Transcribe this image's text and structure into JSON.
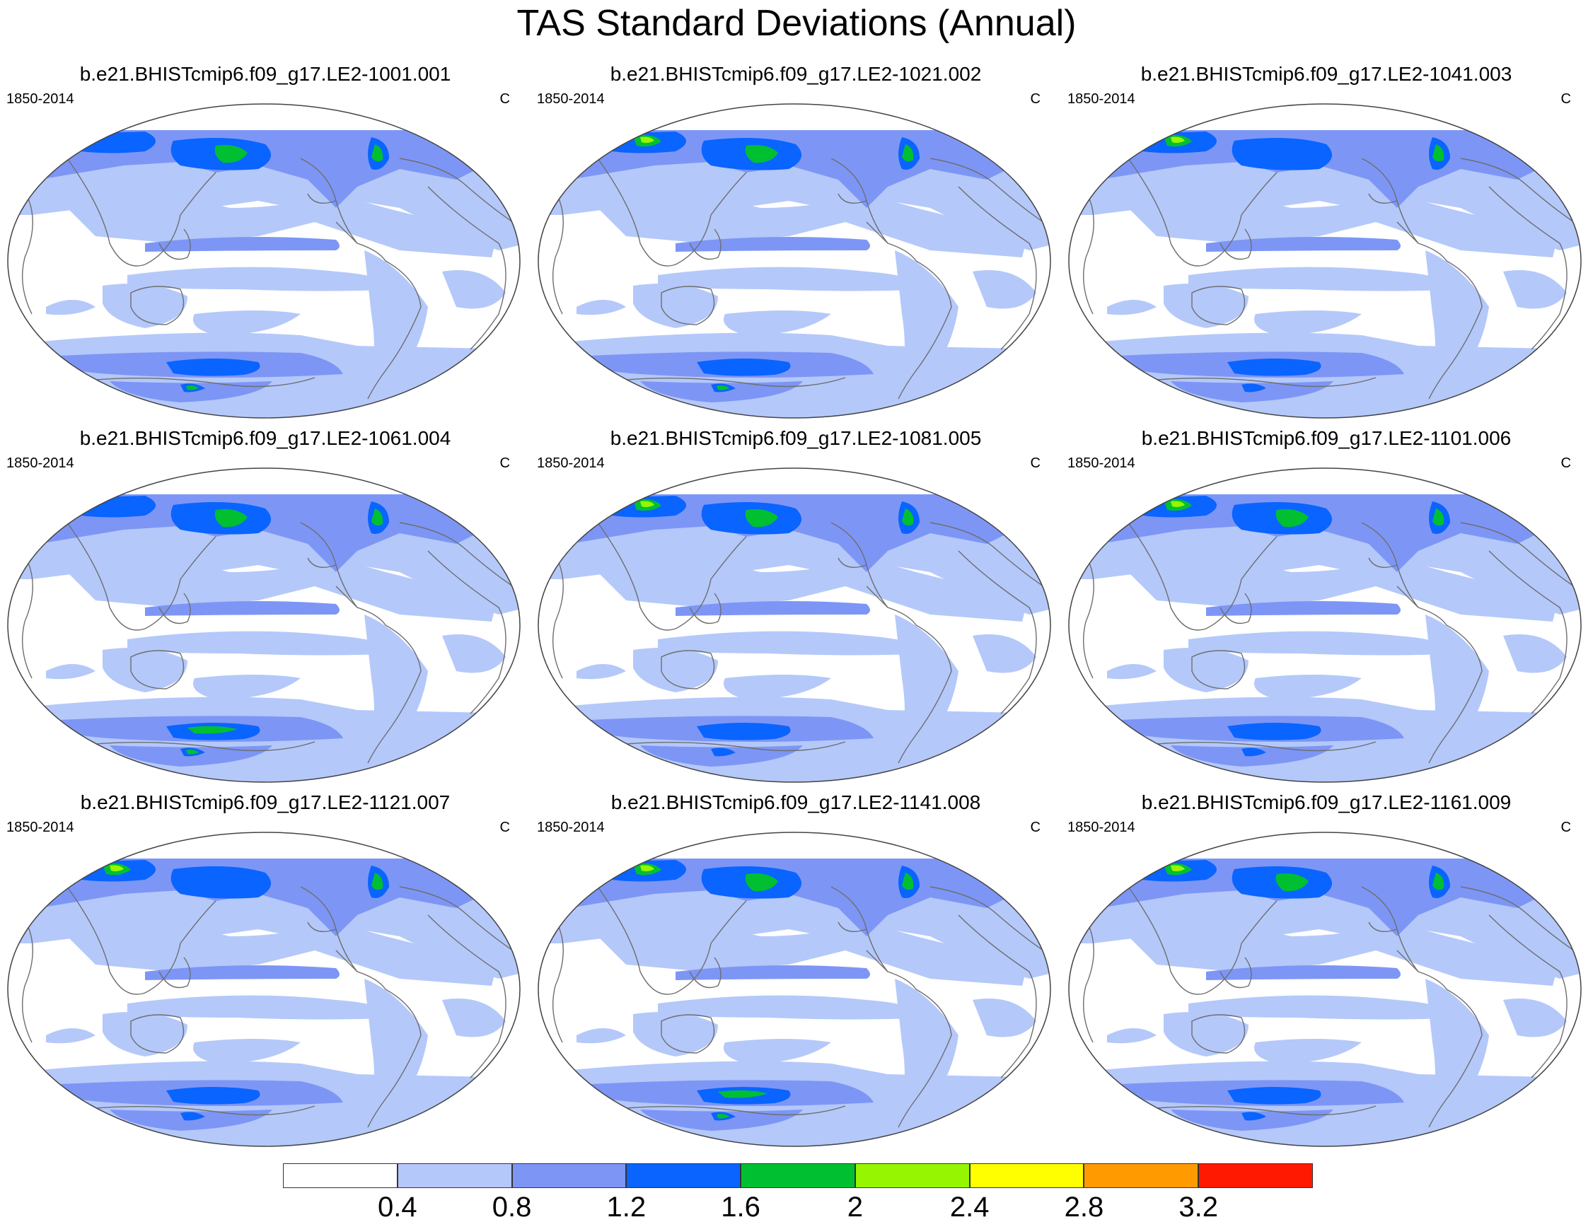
{
  "title": "TAS Standard Deviations (Annual)",
  "panels": [
    {
      "title": "b.e21.BHISTcmip6.f09_g17.LE2-1001.001",
      "period": "1850-2014",
      "units": "C",
      "green_arctic": false,
      "green_siberia": true,
      "green_greenland": true,
      "green_antarctic": false,
      "green_antarctic_interior": true
    },
    {
      "title": "b.e21.BHISTcmip6.f09_g17.LE2-1021.002",
      "period": "1850-2014",
      "units": "C",
      "green_arctic": true,
      "green_siberia": true,
      "green_greenland": true,
      "green_antarctic": false,
      "green_antarctic_interior": true
    },
    {
      "title": "b.e21.BHISTcmip6.f09_g17.LE2-1041.003",
      "period": "1850-2014",
      "units": "C",
      "green_arctic": true,
      "green_siberia": false,
      "green_greenland": true,
      "green_antarctic": false,
      "green_antarctic_interior": false
    },
    {
      "title": "b.e21.BHISTcmip6.f09_g17.LE2-1061.004",
      "period": "1850-2014",
      "units": "C",
      "green_arctic": false,
      "green_siberia": true,
      "green_greenland": true,
      "green_antarctic": true,
      "green_antarctic_interior": true
    },
    {
      "title": "b.e21.BHISTcmip6.f09_g17.LE2-1081.005",
      "period": "1850-2014",
      "units": "C",
      "green_arctic": true,
      "green_siberia": true,
      "green_greenland": true,
      "green_antarctic": false,
      "green_antarctic_interior": false
    },
    {
      "title": "b.e21.BHISTcmip6.f09_g17.LE2-1101.006",
      "period": "1850-2014",
      "units": "C",
      "green_arctic": true,
      "green_siberia": true,
      "green_greenland": true,
      "green_antarctic": false,
      "green_antarctic_interior": false
    },
    {
      "title": "b.e21.BHISTcmip6.f09_g17.LE2-1121.007",
      "period": "1850-2014",
      "units": "C",
      "green_arctic": true,
      "green_siberia": false,
      "green_greenland": true,
      "green_antarctic": false,
      "green_antarctic_interior": false
    },
    {
      "title": "b.e21.BHISTcmip6.f09_g17.LE2-1141.008",
      "period": "1850-2014",
      "units": "C",
      "green_arctic": true,
      "green_siberia": true,
      "green_greenland": true,
      "green_antarctic": true,
      "green_antarctic_interior": true
    },
    {
      "title": "b.e21.BHISTcmip6.f09_g17.LE2-1161.009",
      "period": "1850-2014",
      "units": "C",
      "green_arctic": true,
      "green_siberia": true,
      "green_greenland": true,
      "green_antarctic": false,
      "green_antarctic_interior": false
    }
  ],
  "colorbar": {
    "labels": [
      "0.4",
      "0.8",
      "1.2",
      "1.6",
      "2",
      "2.4",
      "2.8",
      "3.2"
    ],
    "colors": [
      "#ffffff",
      "#b4c8fa",
      "#7d96f5",
      "#0a64ff",
      "#00c032",
      "#96f500",
      "#ffff00",
      "#ff9b00",
      "#ff1900"
    ],
    "unit": "C"
  },
  "palette": {
    "low": "#b4c8fa",
    "mid": "#7d96f5",
    "high": "#0a64ff",
    "green": "#00c032",
    "lime": "#96f500",
    "coast": "#6e6e6e",
    "border": "#444444"
  }
}
